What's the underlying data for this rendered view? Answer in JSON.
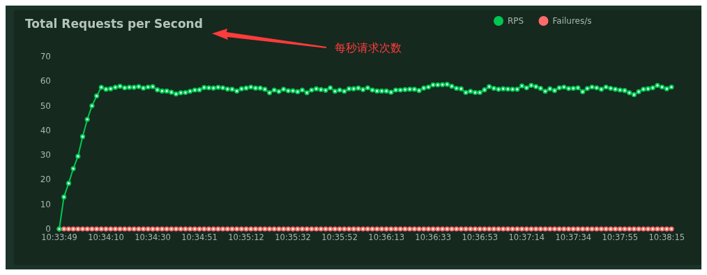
{
  "chart_data": {
    "type": "line",
    "title": "Total Requests per Second",
    "annotations": [
      "每秒请求次数"
    ],
    "categories": [
      "10:33:49",
      null,
      null,
      null,
      null,
      null,
      null,
      null,
      null,
      null,
      "10:34:10",
      null,
      null,
      null,
      null,
      null,
      null,
      null,
      null,
      null,
      "10:34:30",
      null,
      null,
      null,
      null,
      null,
      null,
      null,
      null,
      null,
      "10:34:51",
      null,
      null,
      null,
      null,
      null,
      null,
      null,
      null,
      null,
      "10:35:12",
      null,
      null,
      null,
      null,
      null,
      null,
      null,
      null,
      null,
      "10:35:32",
      null,
      null,
      null,
      null,
      null,
      null,
      null,
      null,
      null,
      "10:35:52",
      null,
      null,
      null,
      null,
      null,
      null,
      null,
      null,
      null,
      "10:36:13",
      null,
      null,
      null,
      null,
      null,
      null,
      null,
      null,
      null,
      "10:36:33",
      null,
      null,
      null,
      null,
      null,
      null,
      null,
      null,
      null,
      "10:36:53",
      null,
      null,
      null,
      null,
      null,
      null,
      null,
      null,
      null,
      "10:37:14",
      null,
      null,
      null,
      null,
      null,
      null,
      null,
      null,
      null,
      "10:37:34",
      null,
      null,
      null,
      null,
      null,
      null,
      null,
      null,
      null,
      "10:37:55",
      null,
      null,
      null,
      null,
      null,
      null,
      null,
      null,
      null,
      "10:38:15",
      null
    ],
    "series": [
      {
        "name": "RPS",
        "color": "#00c853",
        "values": [
          0,
          13,
          18.5,
          24.5,
          29.5,
          37.5,
          44.5,
          50,
          54,
          57.5,
          56.7,
          56.9,
          57.5,
          57.9,
          57.3,
          57.5,
          57.5,
          57.8,
          57.2,
          57.6,
          57.8,
          56.5,
          56,
          56,
          55.5,
          54.8,
          55.3,
          55.4,
          55.9,
          56.4,
          56.5,
          57.4,
          57.3,
          57.2,
          57.5,
          57.3,
          56.8,
          56.7,
          56,
          56.9,
          57.2,
          57.6,
          57.2,
          57.2,
          56.7,
          55.3,
          56.4,
          55.8,
          56.7,
          56.1,
          56.1,
          55.7,
          56.4,
          55.3,
          56.4,
          56.9,
          56.6,
          56.3,
          57.3,
          55.9,
          56.4,
          55.9,
          56.9,
          56.9,
          57.2,
          56.6,
          57.3,
          56.4,
          56,
          56,
          56,
          55.5,
          56.4,
          56.4,
          56.6,
          56.7,
          56.7,
          56.2,
          57.2,
          57.6,
          58.5,
          58.5,
          58.6,
          58.7,
          57.9,
          57.1,
          56.9,
          55.4,
          55.9,
          55.4,
          55.4,
          56.5,
          57.8,
          57.1,
          56.7,
          56.9,
          56.8,
          56.7,
          56.7,
          58.1,
          57.3,
          58.3,
          57.8,
          57.1,
          55.9,
          56.9,
          56.2,
          57.3,
          57.6,
          57,
          57.1,
          57.3,
          55.7,
          57,
          57.6,
          57.3,
          56.7,
          57.6,
          57.1,
          56.7,
          56.4,
          56.2,
          55.3,
          54.5,
          55.7,
          56.7,
          56.9,
          57.3,
          58.3,
          57.6,
          56.9,
          57.6
        ]
      },
      {
        "name": "Failures/s",
        "color": "#ff6b6b",
        "values": [
          0,
          0,
          0,
          0,
          0,
          0,
          0,
          0,
          0,
          0,
          0,
          0,
          0,
          0,
          0,
          0,
          0,
          0,
          0,
          0,
          0,
          0,
          0,
          0,
          0,
          0,
          0,
          0,
          0,
          0,
          0,
          0,
          0,
          0,
          0,
          0,
          0,
          0,
          0,
          0,
          0,
          0,
          0,
          0,
          0,
          0,
          0,
          0,
          0,
          0,
          0,
          0,
          0,
          0,
          0,
          0,
          0,
          0,
          0,
          0,
          0,
          0,
          0,
          0,
          0,
          0,
          0,
          0,
          0,
          0,
          0,
          0,
          0,
          0,
          0,
          0,
          0,
          0,
          0,
          0,
          0,
          0,
          0,
          0,
          0,
          0,
          0,
          0,
          0,
          0,
          0,
          0,
          0,
          0,
          0,
          0,
          0,
          0,
          0,
          0,
          0,
          0,
          0,
          0,
          0,
          0,
          0,
          0,
          0,
          0,
          0,
          0,
          0,
          0,
          0,
          0,
          0,
          0,
          0,
          0,
          0,
          0,
          0,
          0,
          0,
          0,
          0,
          0,
          0,
          0,
          0,
          0
        ]
      }
    ],
    "ylim": [
      0,
      70
    ],
    "yticks": [
      0,
      10,
      20,
      30,
      40,
      50,
      60,
      70
    ],
    "marker": "circle",
    "legend": "top right"
  }
}
